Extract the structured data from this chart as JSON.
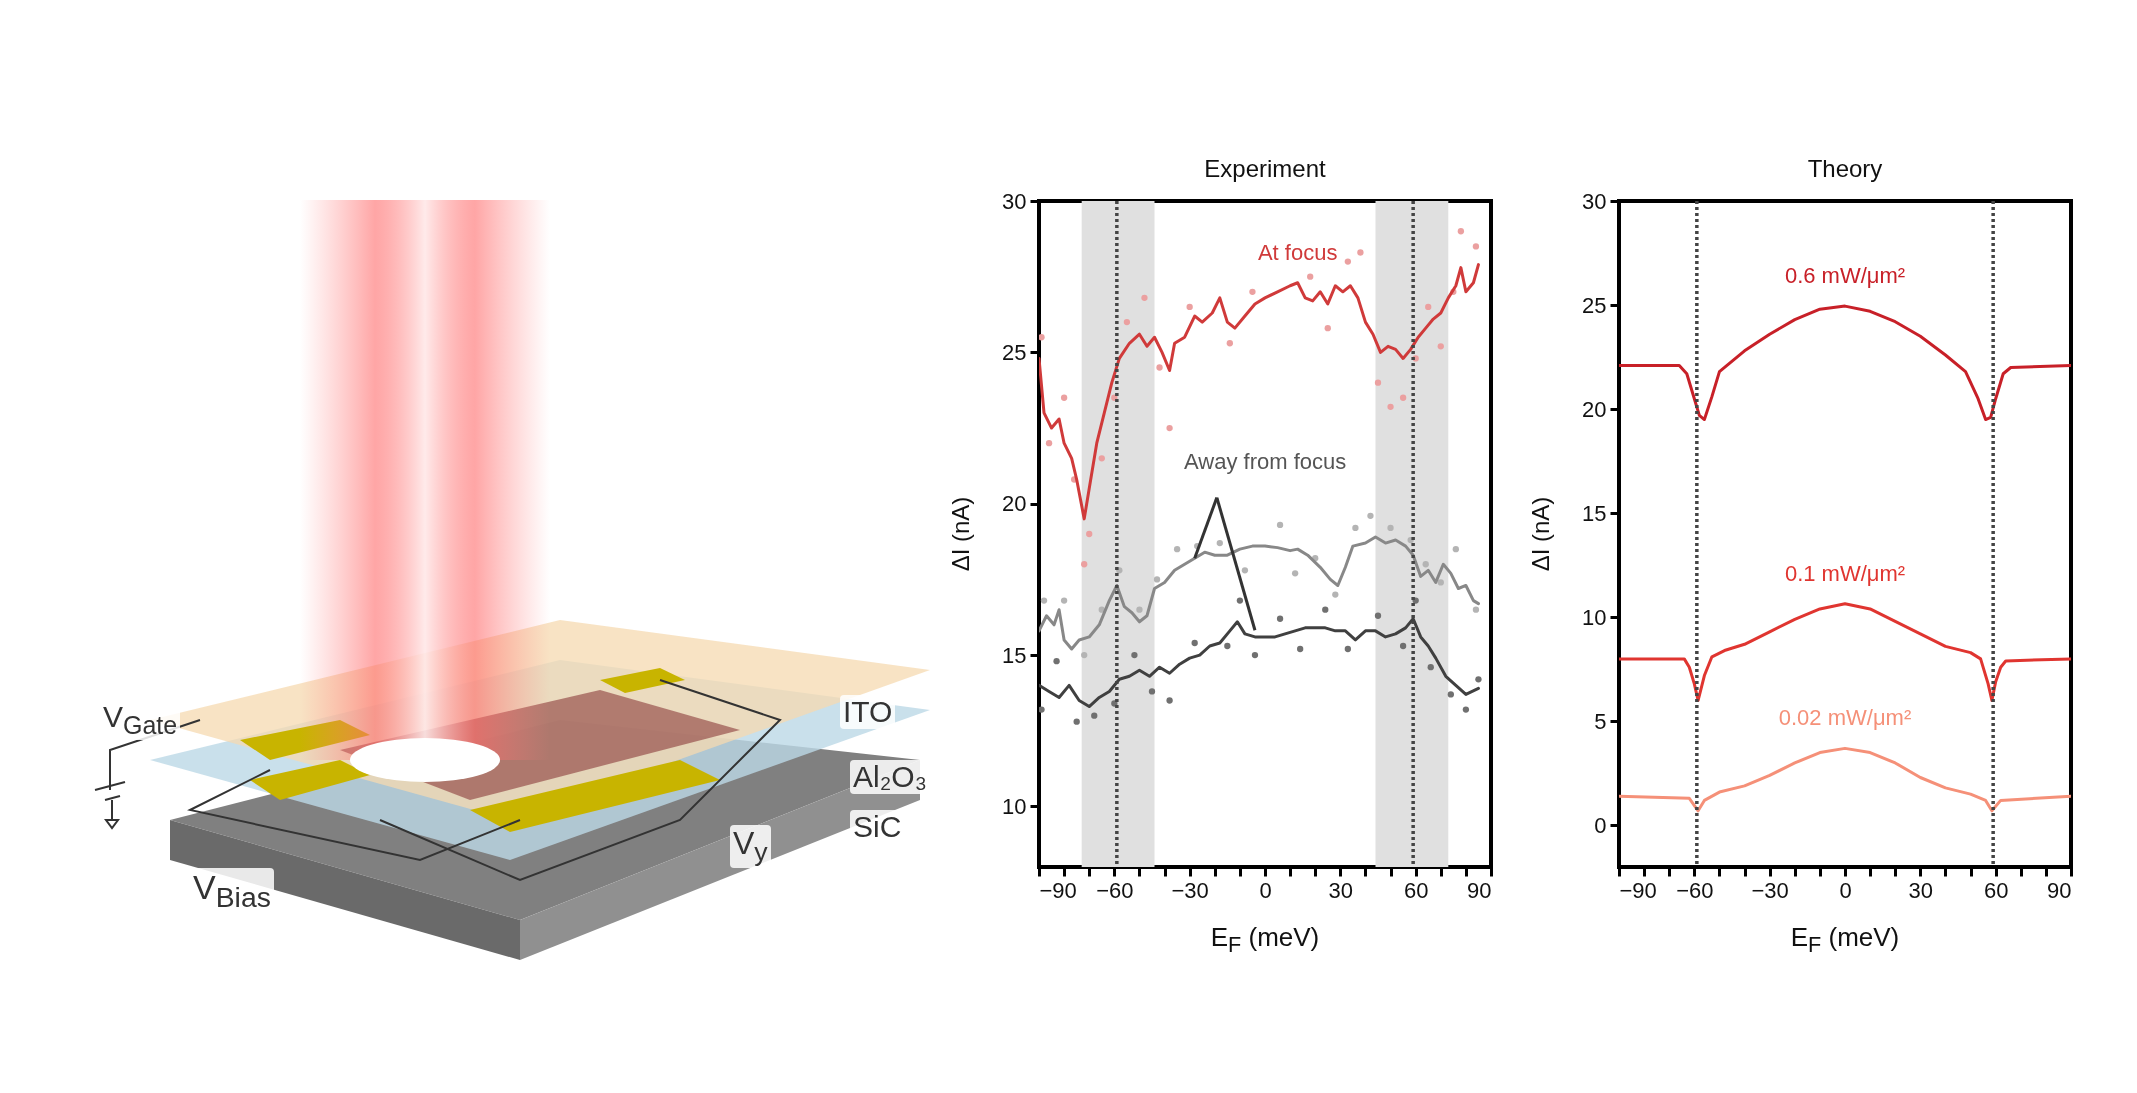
{
  "chart_data": [
    {
      "type": "other",
      "annotations": [
        "V$_{Gate}$",
        "ITO",
        "Al₂O₃",
        "SiC",
        "V$_{Bias}$",
        "V$_{y}$"
      ]
    },
    {
      "type": "line",
      "title": "Experiment",
      "xlabel": "E$_{F}$ (meV)",
      "ylabel": "ΔI (nA)",
      "xlim": [
        -90,
        90
      ],
      "ylim": [
        8,
        30
      ],
      "xticks": [
        -90,
        {
          "value": -80,
          "label": null
        },
        {
          "value": -70,
          "label": null
        },
        -60,
        {
          "value": -50,
          "label": null
        },
        {
          "value": -40,
          "label": null
        },
        -30,
        {
          "value": -20,
          "label": null
        },
        {
          "value": -10,
          "label": null
        },
        0,
        {
          "value": 10,
          "label": null
        },
        {
          "value": 20,
          "label": null
        },
        30,
        {
          "value": 40,
          "label": null
        },
        {
          "value": 50,
          "label": null
        },
        60,
        {
          "value": 70,
          "label": null
        },
        {
          "value": 80,
          "label": null
        },
        90
      ],
      "yticks": [
        10,
        15,
        20,
        25,
        30
      ],
      "grid": false,
      "line_style": "solid",
      "bands": [
        {
          "axis": "x",
          "from": -73,
          "to": -44,
          "color": "#e0e0e0"
        },
        {
          "axis": "x",
          "from": 44,
          "to": 73,
          "color": "#e0e0e0"
        }
      ],
      "ref_lines": [
        {
          "axis": "x",
          "value": -59,
          "color": "#444444",
          "line_style": "dotted"
        },
        {
          "axis": "x",
          "value": 59,
          "color": "#444444",
          "line_style": "dotted"
        }
      ],
      "annotations": [
        {
          "text": "Away from focus",
          "x": -28,
          "y": 18.2
        }
      ],
      "series": [
        {
          "name": "At focus",
          "color": "#d03a3a",
          "type": "line",
          "x": [
            -90,
            -88,
            -85,
            -82,
            -80,
            -77,
            -75,
            -72,
            -70,
            -67,
            -64,
            -61,
            -58,
            -54,
            -50,
            -47,
            -44,
            -41,
            -38,
            -36,
            -32,
            -28,
            -25,
            -21,
            -18,
            -15,
            -12,
            -8,
            -4,
            0,
            5,
            10,
            13,
            16,
            19,
            22,
            25,
            28,
            31,
            34,
            37,
            40,
            43,
            46,
            49,
            52,
            55,
            58,
            61,
            64,
            67,
            70,
            73,
            76,
            78,
            80,
            83,
            85
          ],
          "values": [
            24.8,
            23.0,
            22.5,
            22.8,
            22.0,
            21.5,
            20.8,
            19.5,
            20.5,
            22.0,
            23.0,
            24.0,
            24.8,
            25.3,
            25.6,
            25.2,
            25.5,
            25.0,
            24.4,
            25.3,
            25.5,
            26.2,
            26.0,
            26.3,
            26.8,
            26.0,
            25.8,
            26.2,
            26.6,
            26.8,
            27.0,
            27.2,
            27.3,
            26.8,
            26.7,
            27.0,
            26.6,
            27.2,
            27.0,
            27.2,
            26.8,
            26.0,
            25.6,
            25.0,
            25.2,
            25.1,
            24.8,
            25.1,
            25.5,
            25.8,
            26.1,
            26.3,
            26.8,
            27.2,
            27.8,
            27.0,
            27.3,
            27.9
          ]
        },
        {
          "color": "#888888",
          "type": "line",
          "x": [
            -90,
            -87,
            -84,
            -82,
            -80,
            -77,
            -74,
            -70,
            -66,
            -62,
            -59,
            -56,
            -53,
            -50,
            -47,
            -44,
            -40,
            -36,
            -32,
            -28,
            -24,
            -20,
            -15,
            -10,
            -5,
            0,
            5,
            10,
            13,
            17,
            22,
            26,
            29,
            32,
            35,
            40,
            44,
            48,
            52,
            56,
            59,
            62,
            65,
            68,
            71,
            74,
            77,
            80,
            83,
            85
          ],
          "values": [
            15.8,
            16.3,
            16.0,
            16.5,
            15.5,
            15.2,
            15.5,
            15.6,
            16.0,
            16.8,
            17.3,
            16.6,
            16.4,
            16.1,
            16.3,
            17.2,
            17.4,
            17.8,
            18.0,
            18.2,
            18.4,
            18.3,
            18.3,
            18.5,
            18.6,
            18.6,
            18.55,
            18.45,
            18.5,
            18.3,
            17.9,
            17.5,
            17.3,
            17.9,
            18.6,
            18.7,
            18.9,
            18.7,
            18.8,
            18.6,
            18.3,
            17.6,
            17.8,
            17.4,
            18.0,
            17.7,
            17.2,
            17.3,
            16.8,
            16.7
          ]
        },
        {
          "color": "#404040",
          "type": "line",
          "x": [
            -90,
            -86,
            -82,
            -78,
            -74,
            -70,
            -66,
            -62,
            -58,
            -54,
            -50,
            -46,
            -42,
            -38,
            -34,
            -30,
            -26,
            -22,
            -18,
            -14,
            -11,
            -8,
            -4,
            0,
            4,
            8,
            12,
            16,
            20,
            24,
            28,
            32,
            36,
            40,
            44,
            48,
            52,
            56,
            59,
            62,
            65,
            68,
            72,
            76,
            80,
            85
          ],
          "values": [
            14.0,
            13.8,
            13.6,
            14.0,
            13.5,
            13.3,
            13.6,
            13.8,
            14.2,
            14.3,
            14.5,
            14.3,
            14.6,
            14.4,
            14.7,
            14.9,
            15.0,
            15.3,
            15.4,
            15.8,
            16.1,
            15.7,
            15.6,
            15.6,
            15.6,
            15.7,
            15.8,
            15.9,
            15.9,
            15.9,
            15.8,
            15.8,
            15.5,
            15.8,
            15.8,
            15.6,
            15.7,
            15.9,
            16.2,
            15.6,
            15.3,
            14.9,
            14.3,
            14.0,
            13.7,
            13.9
          ]
        },
        {
          "color": "#eba0a0",
          "type": "scatter",
          "marker": "circle",
          "x": [
            -89,
            -86,
            -80,
            -76,
            -72,
            -70,
            -65,
            -60,
            -55,
            -48,
            -42,
            -38,
            -30,
            -14,
            -5,
            18,
            25,
            33,
            38,
            45,
            50,
            55,
            60,
            65,
            70,
            75,
            78,
            84
          ],
          "values": [
            25.5,
            22,
            23.5,
            20.8,
            18,
            19,
            21.5,
            23.5,
            26,
            26.8,
            24.5,
            22.5,
            26.5,
            25.3,
            27,
            27.5,
            25.8,
            28,
            28.3,
            24,
            23.2,
            23.5,
            24.8,
            26.5,
            25.2,
            27,
            29,
            28.5
          ]
        },
        {
          "color": "#b4b4b4",
          "type": "scatter",
          "marker": "circle",
          "x": [
            -88,
            -80,
            -72,
            -65,
            -58,
            -50,
            -43,
            -35,
            -27,
            -18,
            -8,
            6,
            12,
            20,
            28,
            36,
            42,
            50,
            58,
            64,
            70,
            76,
            84
          ],
          "values": [
            16.8,
            16.8,
            15,
            16.5,
            17.8,
            16.5,
            17.5,
            18.5,
            18.6,
            18.7,
            17.8,
            19.3,
            17.7,
            18.2,
            17,
            19.2,
            19.6,
            19.2,
            18.8,
            18,
            17.4,
            18.5,
            16.5
          ]
        },
        {
          "color": "#707070",
          "type": "scatter",
          "marker": "circle",
          "x": [
            -89,
            -83,
            -75,
            -68,
            -60,
            -52,
            -45,
            -38,
            -28,
            -15,
            -10,
            -4,
            6,
            14,
            24,
            33,
            45,
            55,
            60,
            66,
            74,
            80,
            85
          ],
          "values": [
            13.2,
            14.8,
            12.8,
            13,
            13.4,
            15,
            13.8,
            13.5,
            15.4,
            15.3,
            16.8,
            15,
            16.2,
            15.2,
            16.5,
            15.2,
            16.3,
            15.3,
            16.8,
            14.6,
            13.7,
            13.2,
            14.2
          ]
        }
      ]
    },
    {
      "type": "line",
      "title": "Theory",
      "xlabel": "E$_{F}$ (meV)",
      "ylabel": "ΔI (nA)",
      "xlim": [
        -90,
        90
      ],
      "ylim": [
        -2,
        30
      ],
      "xticks": [
        -90,
        {
          "value": -80,
          "label": null
        },
        {
          "value": -70,
          "label": null
        },
        -60,
        {
          "value": -50,
          "label": null
        },
        {
          "value": -40,
          "label": null
        },
        -30,
        {
          "value": -20,
          "label": null
        },
        {
          "value": -10,
          "label": null
        },
        0,
        {
          "value": 10,
          "label": null
        },
        {
          "value": 20,
          "label": null
        },
        30,
        {
          "value": 40,
          "label": null
        },
        {
          "value": 50,
          "label": null
        },
        60,
        {
          "value": 70,
          "label": null
        },
        {
          "value": 80,
          "label": null
        },
        90
      ],
      "yticks": [
        0,
        5,
        10,
        15,
        20,
        25,
        30
      ],
      "grid": false,
      "line_style": "solid",
      "ref_lines": [
        {
          "axis": "x",
          "value": -59,
          "color": "#444444",
          "line_style": "dotted"
        },
        {
          "axis": "x",
          "value": 59,
          "color": "#444444",
          "line_style": "dotted"
        }
      ],
      "series": [
        {
          "name": "0.6 mW/μm²",
          "color": "#c82028",
          "x": [
            -90,
            -66,
            -63,
            -60,
            -58,
            -56,
            -53,
            -50,
            -40,
            -30,
            -20,
            -10,
            0,
            10,
            20,
            30,
            40,
            48,
            53,
            56,
            58,
            60,
            63,
            66,
            90
          ],
          "values": [
            22.1,
            22.1,
            21.7,
            20.5,
            19.7,
            19.5,
            20.6,
            21.8,
            22.8,
            23.6,
            24.3,
            24.8,
            24.95,
            24.7,
            24.2,
            23.5,
            22.6,
            21.8,
            20.5,
            19.5,
            19.6,
            20.5,
            21.7,
            22.0,
            22.1
          ]
        },
        {
          "name": "0.1 mW/μm²",
          "color": "#e03530",
          "x": [
            -90,
            -64,
            -62,
            -60,
            -58.5,
            -56,
            -53,
            -48,
            -40,
            -30,
            -20,
            -10,
            0,
            10,
            20,
            30,
            40,
            50,
            54,
            57,
            58.5,
            60,
            62,
            64,
            90
          ],
          "values": [
            8.0,
            8.0,
            7.6,
            6.8,
            6.0,
            7.2,
            8.1,
            8.4,
            8.7,
            9.3,
            9.9,
            10.4,
            10.65,
            10.4,
            9.8,
            9.2,
            8.6,
            8.3,
            8.0,
            6.8,
            6.0,
            6.9,
            7.6,
            7.9,
            8.0
          ]
        },
        {
          "name": "0.02 mW/μm²",
          "color": "#f59078",
          "x": [
            -90,
            -62,
            -58.5,
            -56,
            -50,
            -40,
            -30,
            -20,
            -10,
            0,
            10,
            20,
            30,
            40,
            50,
            56,
            58.5,
            62,
            90
          ],
          "values": [
            1.4,
            1.3,
            0.7,
            1.2,
            1.6,
            1.9,
            2.4,
            3.0,
            3.5,
            3.7,
            3.5,
            3.0,
            2.3,
            1.8,
            1.5,
            1.2,
            0.7,
            1.2,
            1.4
          ]
        }
      ]
    }
  ]
}
